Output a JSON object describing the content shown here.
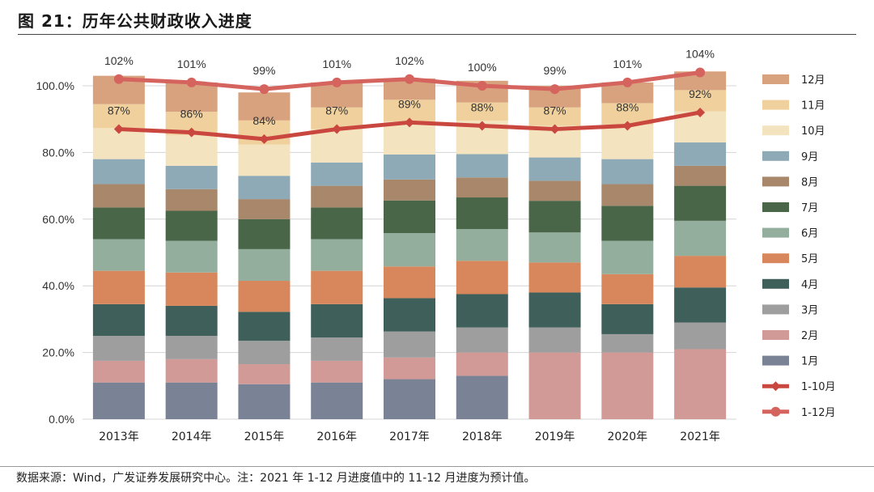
{
  "header": {
    "title": "图 21：历年公共财政收入进度"
  },
  "footer": {
    "source": "数据来源：Wind，广发证券发展研究中心。注：2021 年 1-12 月进度值中的 11-12 月进度为预计值。"
  },
  "chart_data": {
    "type": "bar",
    "stacked": true,
    "categories": [
      "2013年",
      "2014年",
      "2015年",
      "2016年",
      "2017年",
      "2018年",
      "2019年",
      "2020年",
      "2021年"
    ],
    "ylim": [
      0,
      100
    ],
    "ytick_values": [
      0,
      20,
      40,
      60,
      80,
      100
    ],
    "ytick_labels": [
      "0.0%",
      "20.0%",
      "40.0%",
      "60.0%",
      "80.0%",
      "100.0%"
    ],
    "grid": true,
    "legend_position": "right",
    "series": [
      {
        "name": "1月",
        "color": "#7A8295",
        "values": [
          11,
          11,
          10.5,
          11,
          12,
          13,
          0,
          0,
          0
        ]
      },
      {
        "name": "2月",
        "color": "#D29A97",
        "values": [
          6.5,
          7,
          6,
          6.5,
          6.5,
          7,
          20,
          20,
          21
        ]
      },
      {
        "name": "3月",
        "color": "#9E9E9E",
        "values": [
          7.5,
          7,
          7,
          7,
          7.8,
          7.5,
          7.5,
          5.5,
          8
        ]
      },
      {
        "name": "4月",
        "color": "#3F5F5B",
        "values": [
          9.5,
          9,
          8.7,
          10,
          10,
          10,
          10.5,
          9,
          10.5
        ]
      },
      {
        "name": "5月",
        "color": "#D7875B",
        "values": [
          10,
          10,
          9.3,
          10,
          9.5,
          10,
          9,
          9,
          9.5
        ]
      },
      {
        "name": "6月",
        "color": "#94AE9D",
        "values": [
          9.5,
          9.5,
          9.5,
          9.5,
          10,
          9.5,
          9,
          10,
          10.5
        ]
      },
      {
        "name": "7月",
        "color": "#4A6648",
        "values": [
          9.5,
          9,
          9,
          9.5,
          9.8,
          9.5,
          9.5,
          10.5,
          10.5
        ]
      },
      {
        "name": "8月",
        "color": "#A8876B",
        "values": [
          7,
          6.5,
          6,
          6.5,
          6.3,
          6,
          6,
          6.5,
          6
        ]
      },
      {
        "name": "9月",
        "color": "#8DAAB6",
        "values": [
          7.5,
          7,
          7,
          7,
          7.5,
          7,
          7,
          7.5,
          7
        ]
      },
      {
        "name": "10月",
        "color": "#F3E3BE",
        "values": [
          9.3,
          9.2,
          9.4,
          10,
          9.9,
          10,
          9.5,
          10.3,
          9.3
        ]
      },
      {
        "name": "11月",
        "color": "#F0D09D",
        "values": [
          7.2,
          7,
          7.2,
          6.5,
          6.5,
          5.5,
          5.5,
          6.5,
          6.4
        ]
      },
      {
        "name": "12月",
        "color": "#D9A27E",
        "values": [
          8.5,
          8.8,
          8.4,
          7.5,
          6.4,
          6.5,
          6.5,
          6.2,
          5.6
        ]
      }
    ],
    "lines": [
      {
        "name": "1-10月",
        "color": "#C9473F",
        "values": [
          87,
          86,
          84,
          87,
          89,
          88,
          87,
          88,
          92
        ],
        "labels": [
          "87%",
          "86%",
          "84%",
          "87%",
          "89%",
          "88%",
          "87%",
          "88%",
          "92%"
        ]
      },
      {
        "name": "1-12月",
        "color": "#D5645F",
        "values": [
          102,
          101,
          99,
          101,
          102,
          100,
          99,
          101,
          104
        ],
        "labels": [
          "102%",
          "101%",
          "99%",
          "101%",
          "102%",
          "100%",
          "99%",
          "101%",
          "104%"
        ]
      }
    ]
  }
}
